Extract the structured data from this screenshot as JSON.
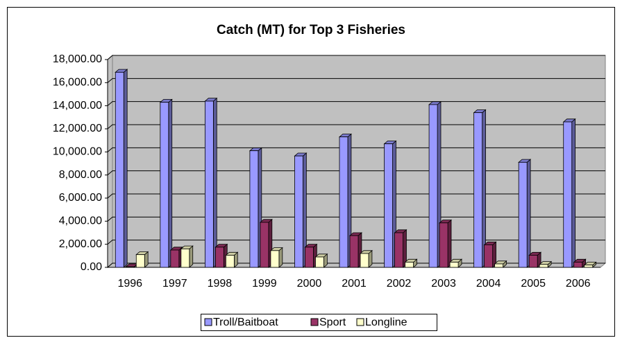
{
  "chart_data": {
    "type": "bar3d",
    "title": "Catch (MT) for Top 3 Fisheries",
    "categories": [
      "1996",
      "1997",
      "1998",
      "1999",
      "2000",
      "2001",
      "2002",
      "2003",
      "2004",
      "2005",
      "2006"
    ],
    "series": [
      {
        "name": "Troll/Baitboat",
        "color": "#9999ff",
        "values": [
          16900,
          14300,
          14400,
          10100,
          9650,
          11300,
          10700,
          14100,
          13400,
          9100,
          12600
        ]
      },
      {
        "name": "Sport",
        "color": "#993366",
        "values": [
          50,
          1500,
          1750,
          3900,
          1750,
          2750,
          3000,
          3850,
          1950,
          1050,
          450
        ]
      },
      {
        "name": "Longline",
        "color": "#ffffcc",
        "values": [
          1100,
          1600,
          1050,
          1450,
          900,
          1200,
          450,
          450,
          300,
          250,
          200
        ]
      }
    ],
    "ylim": [
      0,
      18000
    ],
    "yticks": [
      {
        "value": 0,
        "label": "0.00"
      },
      {
        "value": 2000,
        "label": "2,000.00"
      },
      {
        "value": 4000,
        "label": "4,000.00"
      },
      {
        "value": 6000,
        "label": "6,000.00"
      },
      {
        "value": 8000,
        "label": "8,000.00"
      },
      {
        "value": 10000,
        "label": "10,000.00"
      },
      {
        "value": 12000,
        "label": "12,000.00"
      },
      {
        "value": 14000,
        "label": "14,000.00"
      },
      {
        "value": 16000,
        "label": "16,000.00"
      },
      {
        "value": 18000,
        "label": "18,000.00"
      }
    ],
    "grid": true,
    "legend": "bottom"
  }
}
